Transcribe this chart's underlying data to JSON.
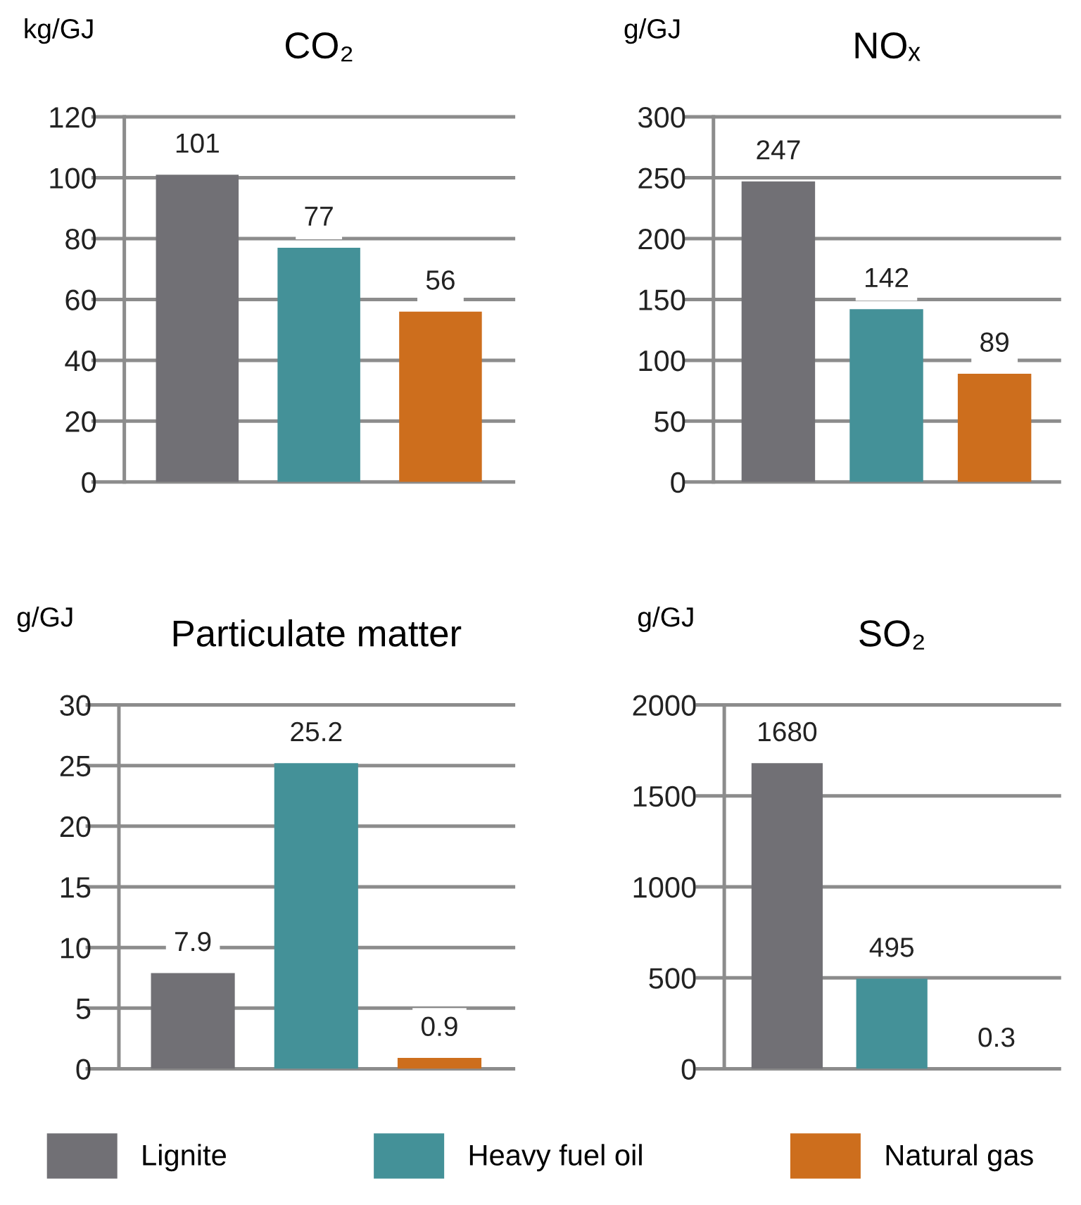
{
  "chart_data": [
    {
      "type": "bar",
      "title": "CO₂",
      "ylabel": "kg/GJ",
      "categories": [
        null
      ],
      "ylim": [
        0,
        120
      ],
      "yticks": [
        0,
        20,
        40,
        60,
        80,
        100,
        120
      ],
      "grid": "y",
      "data_labels": true,
      "legend": "bottom",
      "series": [
        {
          "name": "Lignite",
          "color": "#717075",
          "values": [
            101
          ]
        },
        {
          "name": "Heavy fuel oil",
          "color": "#449198",
          "values": [
            77
          ]
        },
        {
          "name": "Natural gas",
          "color": "#cd6e1d",
          "values": [
            56
          ]
        }
      ]
    },
    {
      "type": "bar",
      "title": "NOₓ",
      "ylabel": "g/GJ",
      "categories": [
        null
      ],
      "ylim": [
        0,
        300
      ],
      "yticks": [
        0,
        50,
        100,
        150,
        200,
        250,
        300
      ],
      "grid": "y",
      "data_labels": true,
      "series": [
        {
          "color": "#717075",
          "values": [
            247
          ]
        },
        {
          "color": "#449198",
          "values": [
            142
          ]
        },
        {
          "color": "#cd6e1d",
          "values": [
            89
          ]
        }
      ]
    },
    {
      "type": "bar",
      "title": "Particulate matter",
      "ylabel": "g/GJ",
      "categories": [
        null
      ],
      "ylim": [
        0,
        30
      ],
      "yticks": [
        0,
        5,
        10,
        15,
        20,
        25,
        30
      ],
      "grid": "y",
      "data_labels": true,
      "series": [
        {
          "color": "#717075",
          "values": [
            7.9
          ]
        },
        {
          "color": "#449198",
          "values": [
            25.2
          ]
        },
        {
          "color": "#cd6e1d",
          "values": [
            0.9
          ]
        }
      ]
    },
    {
      "type": "bar",
      "title": "SO₂",
      "ylabel": "g/GJ",
      "categories": [
        null
      ],
      "ylim": [
        0,
        2000
      ],
      "yticks": [
        0,
        500,
        1000,
        1500,
        2000
      ],
      "grid": "y",
      "data_labels": true,
      "series": [
        {
          "color": "#717075",
          "values": [
            1680
          ]
        },
        {
          "color": "#449198",
          "values": [
            495
          ]
        },
        {
          "color": "#cd6e1d",
          "values": [
            0.3
          ]
        }
      ]
    }
  ]
}
